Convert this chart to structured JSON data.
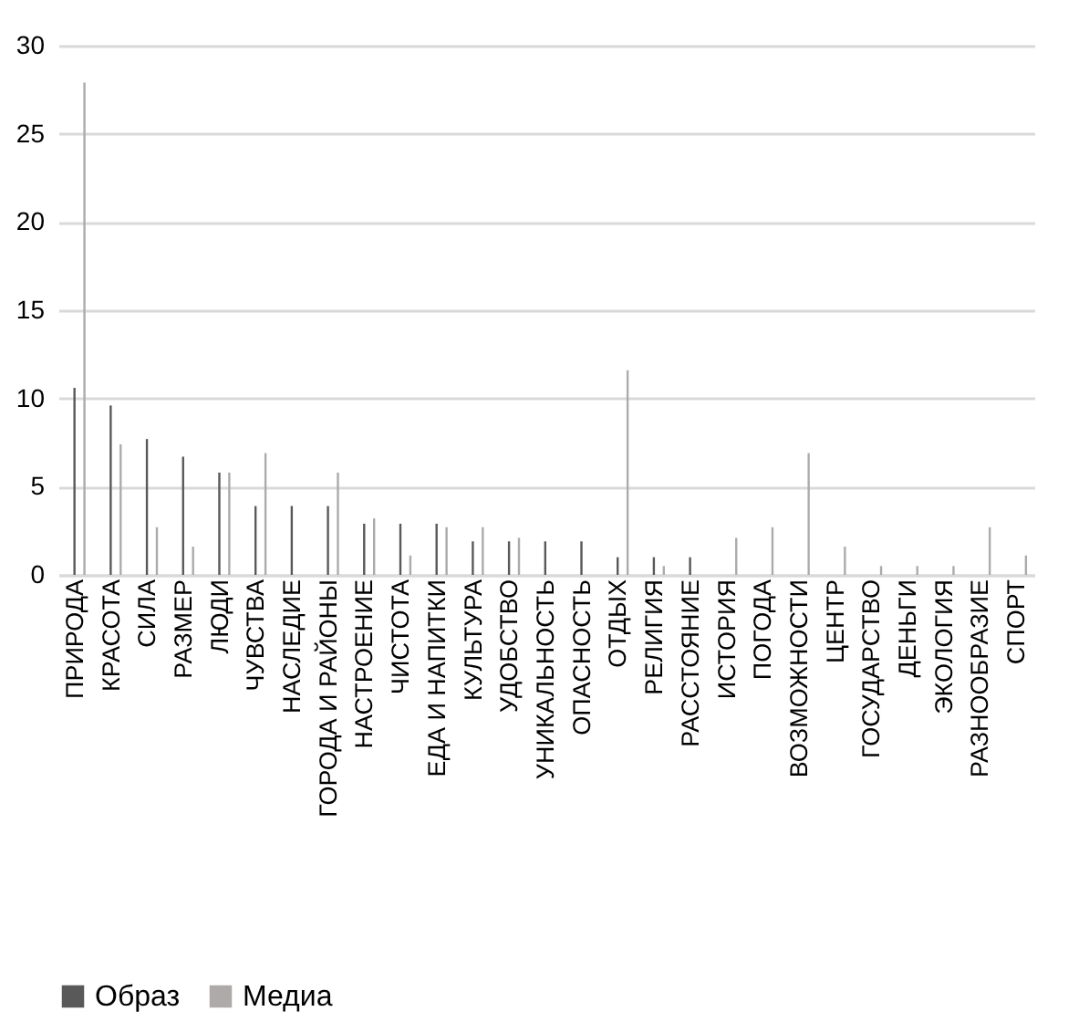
{
  "chart_data": {
    "type": "bar",
    "categories": [
      "ПРИРОДА",
      "КРАСОТА",
      "СИЛА",
      "РАЗМЕР",
      "ЛЮДИ",
      "ЧУВСТВА",
      "НАСЛЕДИЕ",
      "ГОРОДА И РАЙОНЫ",
      "НАСТРОЕНИЕ",
      "ЧИСТОТА",
      "ЕДА И НАПИТКИ",
      "КУЛЬТУРА",
      "УДОБСТВО",
      "УНИКАЛЬНОСТЬ",
      "ОПАСНОСТЬ",
      "ОТДЫХ",
      "РЕЛИГИЯ",
      "РАССТОЯНИЕ",
      "ИСТОРИЯ",
      "ПОГОДА",
      "ВОЗМОЖНОСТИ",
      "ЦЕНТР",
      "ГОСУДАРСТВО",
      "ДЕНЬГИ",
      "ЭКОЛОГИЯ",
      "РАЗНООБРАЗИЕ",
      "СПОРТ"
    ],
    "series": [
      {
        "name": "Образ",
        "color": "#595959",
        "values": [
          10.6,
          9.6,
          7.7,
          6.7,
          5.8,
          3.9,
          3.9,
          3.9,
          2.9,
          2.9,
          2.9,
          1.9,
          1.9,
          1.9,
          1.9,
          1.0,
          1.0,
          1.0,
          0,
          0,
          0,
          0,
          0,
          0,
          0,
          0,
          0
        ]
      },
      {
        "name": "Медиа",
        "color": "#aeaaaa",
        "values": [
          27.9,
          7.4,
          2.7,
          1.6,
          5.8,
          6.9,
          0,
          5.8,
          3.2,
          1.1,
          2.7,
          2.7,
          2.1,
          0,
          0,
          11.6,
          0.5,
          0,
          2.1,
          2.7,
          6.9,
          1.6,
          0.5,
          0.5,
          0.5,
          2.7,
          1.1
        ]
      }
    ],
    "ylim": [
      0,
      30
    ],
    "yticks": [
      0,
      5,
      10,
      15,
      20,
      25,
      30
    ],
    "grid": "y",
    "legend": "bottom"
  }
}
